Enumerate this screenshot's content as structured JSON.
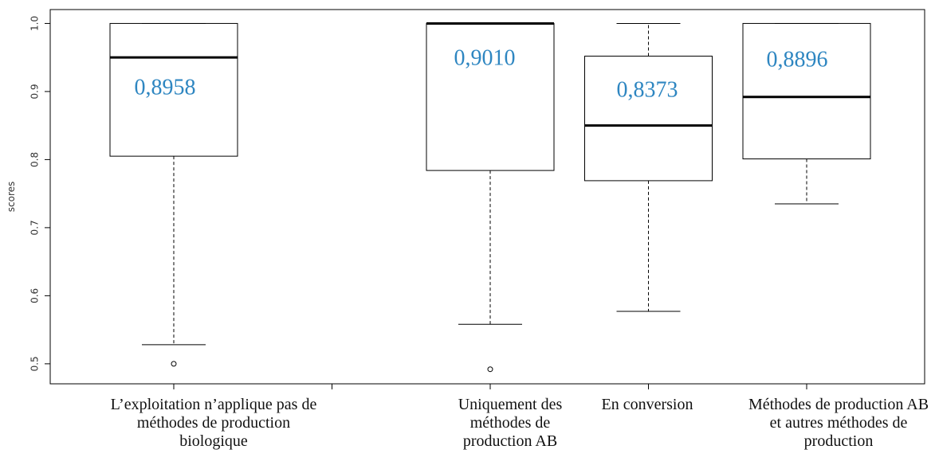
{
  "chart_data": {
    "type": "box",
    "y_label": "scores",
    "categories": [
      "L’exploitation n’applique pas de méthodes de production biologique",
      null,
      "Uniquement des méthodes de production AB",
      "En conversion",
      "Méthodes de production AB et autres méthodes de production"
    ],
    "boxes": [
      {
        "whisker_low": 0.528,
        "q1": 0.805,
        "median": 0.95,
        "q3": 1.0,
        "whisker_high": 1.0,
        "outliers": [
          0.5
        ]
      },
      null,
      {
        "whisker_low": 0.558,
        "q1": 0.784,
        "median": 1.0,
        "q3": 1.0,
        "whisker_high": 1.0,
        "outliers": [
          0.492
        ]
      },
      {
        "whisker_low": 0.577,
        "q1": 0.769,
        "median": 0.85,
        "q3": 0.952,
        "whisker_high": 1.0,
        "outliers": []
      },
      {
        "whisker_low": 0.735,
        "q1": 0.801,
        "median": 0.892,
        "q3": 1.0,
        "whisker_high": 1.0,
        "outliers": []
      }
    ],
    "annotations": [
      "0,8958",
      null,
      "0,9010",
      "0,8373",
      "0,8896"
    ],
    "annotation_color": "#2e86c1",
    "ylim": [
      0.4706,
      1.0204
    ],
    "yticks": [
      0.5,
      0.6,
      0.7,
      0.8,
      0.9,
      {
        "value": 1,
        "label": "1.0"
      }
    ]
  }
}
